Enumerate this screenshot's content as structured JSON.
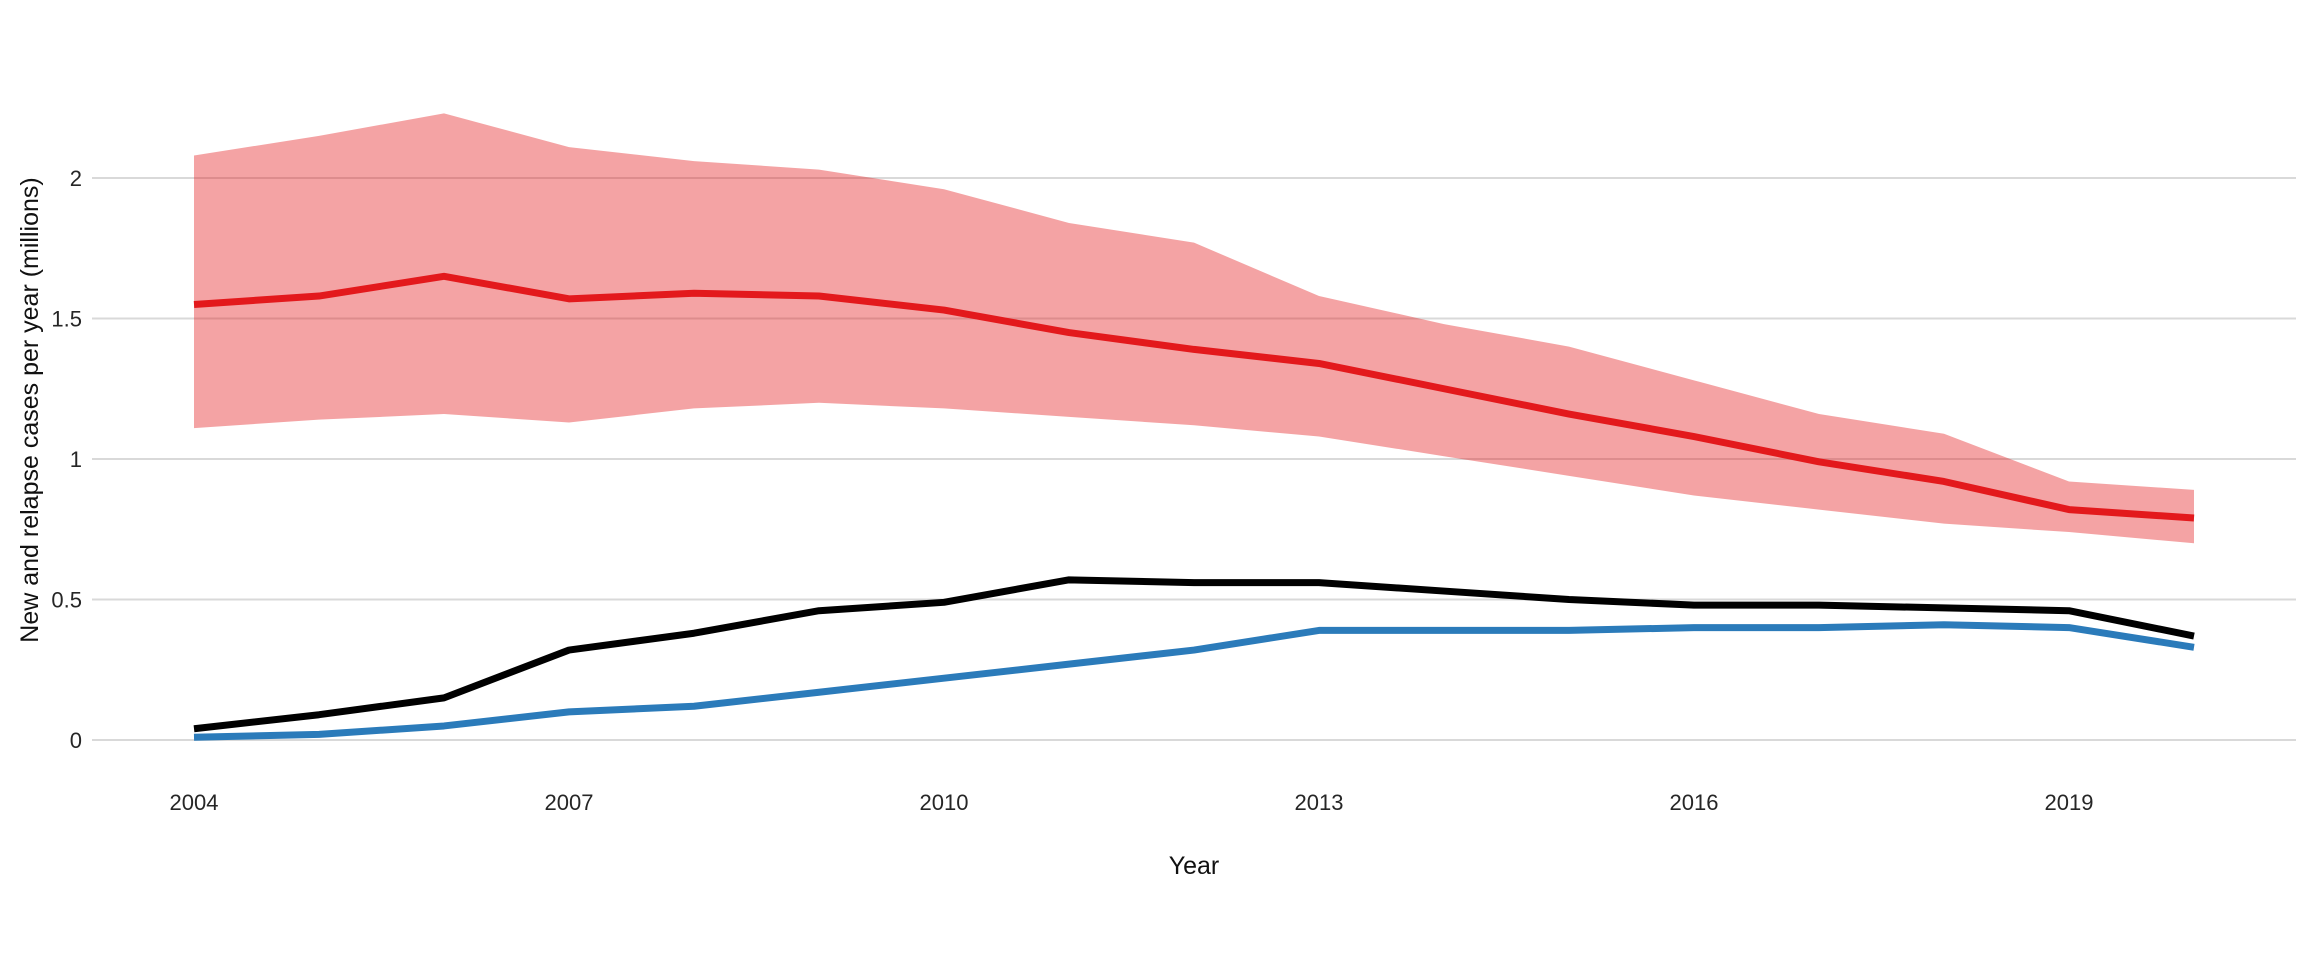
{
  "chart_data": {
    "type": "line",
    "title": "",
    "xlabel": "Year",
    "ylabel": "New and relapse cases per year (millions)",
    "x": [
      2004,
      2005,
      2006,
      2007,
      2008,
      2009,
      2010,
      2011,
      2012,
      2013,
      2014,
      2015,
      2016,
      2017,
      2018,
      2019,
      2020
    ],
    "x_ticks": [
      2004,
      2007,
      2010,
      2013,
      2016,
      2019
    ],
    "y_ticks": [
      0,
      0.5,
      1,
      1.5,
      2
    ],
    "y_tick_labels": [
      "0",
      "0.5",
      "1",
      "1.5",
      "2"
    ],
    "xlim": [
      2004,
      2020
    ],
    "ylim": [
      -0.09,
      2.45
    ],
    "grid": "horizontal-only",
    "legend": "none",
    "background": "#ffffff",
    "gridline_color": "#d9d9d9",
    "series": [
      {
        "id": "red-line",
        "color": "#e3191c",
        "values": [
          1.55,
          1.58,
          1.65,
          1.57,
          1.59,
          1.58,
          1.53,
          1.45,
          1.39,
          1.34,
          1.25,
          1.16,
          1.08,
          0.99,
          0.92,
          0.82,
          0.79
        ],
        "band": {
          "upper": [
            2.08,
            2.15,
            2.23,
            2.11,
            2.06,
            2.03,
            1.96,
            1.84,
            1.77,
            1.58,
            1.48,
            1.4,
            1.28,
            1.16,
            1.09,
            0.92,
            0.89
          ],
          "lower": [
            1.11,
            1.14,
            1.16,
            1.13,
            1.18,
            1.2,
            1.18,
            1.15,
            1.12,
            1.08,
            1.01,
            0.94,
            0.87,
            0.82,
            0.77,
            0.74,
            0.7
          ],
          "color": "#e3191c",
          "opacity": 0.4
        }
      },
      {
        "id": "black-line",
        "color": "#000000",
        "values": [
          0.04,
          0.09,
          0.15,
          0.32,
          0.38,
          0.46,
          0.49,
          0.57,
          0.56,
          0.56,
          0.53,
          0.5,
          0.48,
          0.48,
          0.47,
          0.46,
          0.37
        ]
      },
      {
        "id": "blue-line",
        "color": "#2b7bba",
        "values": [
          0.01,
          0.02,
          0.05,
          0.1,
          0.12,
          0.17,
          0.22,
          0.27,
          0.32,
          0.39,
          0.39,
          0.39,
          0.4,
          0.4,
          0.41,
          0.4,
          0.33
        ]
      }
    ]
  }
}
